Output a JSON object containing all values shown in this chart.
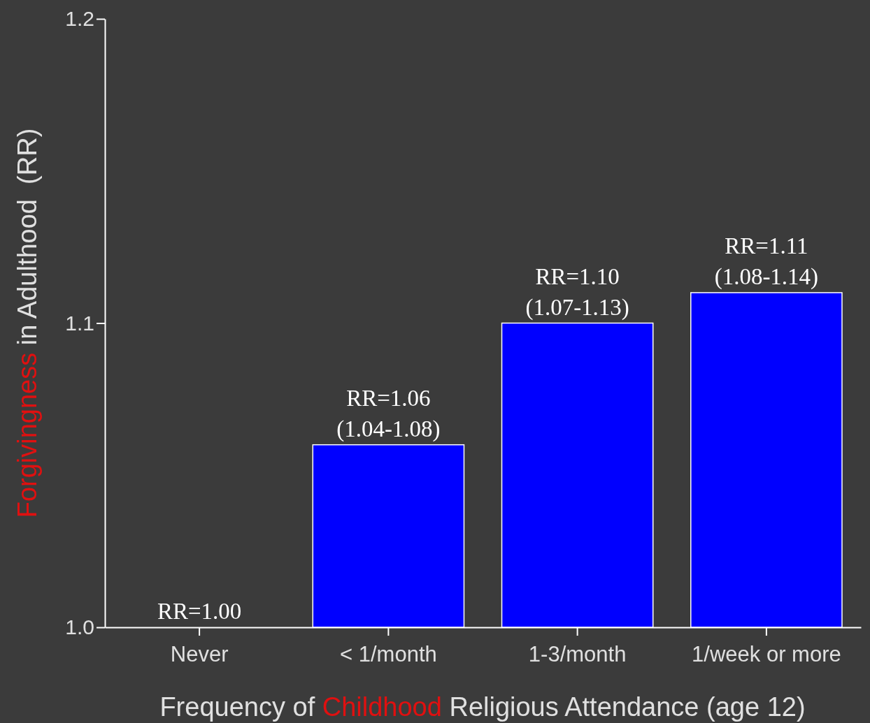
{
  "chart_data": {
    "type": "bar",
    "xlabel": "Frequency of Childhood Religious Attendance (age 12)",
    "ylabel": "Forgivingness in Adulthood  (RR)",
    "categories": [
      "Never",
      "< 1/month",
      "1-3/month",
      "1/week or more"
    ],
    "values": [
      1.0,
      1.06,
      1.1,
      1.11
    ],
    "value_labels": [
      "RR=1.00",
      "RR=1.06\n(1.04-1.08)",
      "RR=1.10\n(1.07-1.13)",
      "RR=1.11\n(1.08-1.14)"
    ],
    "color": "#0000ff",
    "ylim": [
      1.0,
      1.2
    ],
    "yticks": [
      {
        "value": 1.0,
        "label": "1.0"
      },
      {
        "value": 1.1,
        "label": "1.1"
      },
      {
        "value": 1.2,
        "label": "1.2"
      }
    ],
    "grid": false,
    "legend": false
  }
}
